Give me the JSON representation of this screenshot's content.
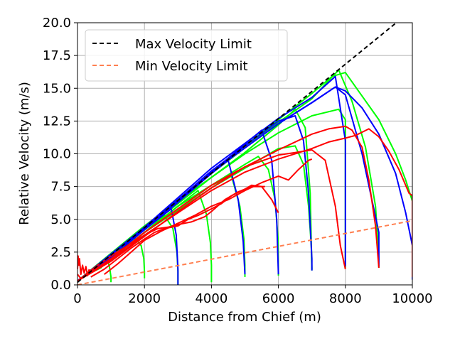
{
  "chart_data": {
    "type": "line",
    "xlabel": "Distance from Chief (m)",
    "ylabel": "Relative Velocity (m/s)",
    "xlim": [
      0,
      10000
    ],
    "ylim": [
      0,
      20
    ],
    "x_ticks": [
      "0",
      "2000",
      "4000",
      "6000",
      "8000",
      "10000"
    ],
    "y_ticks": [
      "0.0",
      "2.5",
      "5.0",
      "7.5",
      "10.0",
      "12.5",
      "15.0",
      "17.5",
      "20.0"
    ],
    "grid": true,
    "legend_position": "top-left",
    "limits": [
      {
        "name": "Max Velocity Limit",
        "style": "dashed",
        "color": "#000000",
        "x": [
          0,
          10000
        ],
        "y": [
          0.2,
          21.0
        ]
      },
      {
        "name": "Min Velocity Limit",
        "style": "dashed",
        "color": "#ff7f50",
        "x": [
          0,
          10000
        ],
        "y": [
          0.0,
          4.9
        ]
      }
    ],
    "series": [
      {
        "color": "#00ff00",
        "x": [
          0,
          300,
          700,
          900,
          960,
          1000,
          1000
        ],
        "y": [
          0.3,
          0.8,
          1.3,
          1.9,
          1.3,
          0.6,
          0.2
        ]
      },
      {
        "color": "#00ff00",
        "x": [
          0,
          600,
          1200,
          1700,
          1900,
          1980,
          2000,
          2000
        ],
        "y": [
          0.3,
          1.4,
          2.6,
          3.6,
          3.0,
          2.0,
          1.0,
          0.5
        ]
      },
      {
        "color": "#00ff00",
        "x": [
          0,
          1000,
          2000,
          2600,
          2850,
          2970,
          3000,
          3000
        ],
        "y": [
          0.3,
          2.0,
          4.0,
          5.3,
          4.3,
          2.5,
          1.0,
          0.0
        ]
      },
      {
        "color": "#00ff00",
        "x": [
          0,
          1000,
          2000,
          3000,
          3600,
          3850,
          3970,
          4000,
          4000
        ],
        "y": [
          0.3,
          2.0,
          4.0,
          6.0,
          7.2,
          5.4,
          3.2,
          1.5,
          0.2
        ]
      },
      {
        "color": "#00ff00",
        "x": [
          0,
          1000,
          2000,
          3000,
          4000,
          4600,
          4850,
          4970,
          5000,
          5000
        ],
        "y": [
          0.3,
          2.0,
          4.0,
          6.0,
          7.6,
          8.3,
          6.0,
          3.5,
          1.5,
          0.6
        ]
      },
      {
        "color": "#00ff00",
        "x": [
          0,
          1000,
          2000,
          3000,
          4000,
          5000,
          5400,
          5700,
          5900,
          5990,
          6000
        ],
        "y": [
          0.3,
          2.0,
          4.0,
          6.0,
          7.6,
          9.2,
          9.8,
          8.8,
          6.5,
          3.5,
          0.7
        ]
      },
      {
        "color": "#00ff00",
        "x": [
          0,
          1000,
          2000,
          3000,
          4000,
          5000,
          6000,
          6500,
          6750,
          6900,
          6980,
          7000
        ],
        "y": [
          0.3,
          2.0,
          4.0,
          5.7,
          7.4,
          8.9,
          10.4,
          10.6,
          9.2,
          6.0,
          3.0,
          1.1
        ]
      },
      {
        "color": "#00ff00",
        "x": [
          0,
          1000,
          2000,
          3000,
          4000,
          5000,
          6000,
          7000,
          7800,
          8000,
          8000
        ],
        "y": [
          0.3,
          2.4,
          4.5,
          6.4,
          8.2,
          10.0,
          11.6,
          12.9,
          13.4,
          12.6,
          1.3
        ]
      },
      {
        "color": "#00ff00",
        "x": [
          0,
          2000,
          4000,
          5000,
          6000,
          6500,
          6800,
          6950,
          7000
        ],
        "y": [
          0.3,
          4.2,
          8.2,
          10.1,
          12.2,
          13.4,
          12.0,
          7.0,
          1.2
        ]
      },
      {
        "color": "#00ff00",
        "x": [
          0,
          2000,
          4000,
          6000,
          7000,
          7800,
          8200,
          8600,
          8900,
          8990,
          9000
        ],
        "y": [
          0.3,
          4.3,
          8.5,
          12.4,
          14.2,
          16.4,
          14.0,
          10.5,
          6.0,
          2.5,
          1.3
        ]
      },
      {
        "color": "#00ff00",
        "x": [
          0,
          2000,
          4000,
          6000,
          7000,
          7600,
          8000,
          9000,
          9500,
          9800,
          10000,
          10000
        ],
        "y": [
          0.3,
          4.4,
          8.6,
          12.6,
          14.6,
          15.9,
          16.2,
          12.6,
          10.0,
          8.0,
          6.4,
          0.4
        ]
      },
      {
        "color": "#0000ff",
        "x": [
          0,
          1000,
          2000,
          2800,
          2950,
          3000,
          3000
        ],
        "y": [
          0.3,
          2.1,
          4.2,
          5.8,
          3.8,
          1.2,
          0.0
        ]
      },
      {
        "color": "#0000ff",
        "x": [
          0,
          1000,
          2000,
          3000,
          4000,
          4500,
          4800,
          4950,
          5000
        ],
        "y": [
          0.3,
          2.1,
          4.2,
          6.3,
          8.5,
          9.5,
          6.5,
          3.3,
          0.8
        ]
      },
      {
        "color": "#0000ff",
        "x": [
          0,
          2000,
          4000,
          5500,
          5800,
          5950,
          6000
        ],
        "y": [
          0.3,
          4.3,
          8.6,
          11.8,
          9.5,
          5.0,
          0.8
        ]
      },
      {
        "color": "#0000ff",
        "x": [
          0,
          2000,
          4000,
          6000,
          6500,
          6750,
          6900,
          7000,
          7000
        ],
        "y": [
          0.3,
          4.3,
          8.7,
          12.5,
          12.9,
          11.0,
          7.0,
          2.0,
          1.1
        ]
      },
      {
        "color": "#0000ff",
        "x": [
          0,
          2000,
          4000,
          6000,
          7000,
          7700,
          8000,
          8000
        ],
        "y": [
          0.3,
          4.4,
          8.9,
          12.7,
          14.3,
          15.9,
          11.0,
          1.4
        ]
      },
      {
        "color": "#0000ff",
        "x": [
          0,
          2000,
          4000,
          6000,
          7000,
          7700,
          8000,
          8500,
          9000,
          9000
        ],
        "y": [
          0.3,
          4.3,
          8.6,
          12.3,
          13.9,
          15.1,
          14.5,
          10.0,
          4.0,
          1.4
        ]
      },
      {
        "color": "#0000ff",
        "x": [
          0,
          2000,
          4000,
          6000,
          7000,
          7700,
          8000,
          8500,
          9000,
          9500,
          9800,
          10000,
          10000
        ],
        "y": [
          0.3,
          4.3,
          8.6,
          12.3,
          13.9,
          15.1,
          14.8,
          13.5,
          11.5,
          8.5,
          5.5,
          3.0,
          0.4
        ]
      },
      {
        "color": "#ff0000",
        "x": [
          0,
          20,
          40,
          60,
          100,
          150,
          200,
          250,
          300,
          350
        ],
        "y": [
          1.2,
          2.2,
          1.5,
          2.0,
          0.8,
          1.5,
          0.9,
          1.4,
          0.7,
          1.2
        ]
      },
      {
        "color": "#ff0000",
        "x": [
          0,
          100,
          300,
          600,
          1000,
          1500,
          2000,
          2400,
          2700,
          3000,
          3400,
          3800,
          4000,
          4400,
          4800,
          5200,
          5600
        ],
        "y": [
          0.8,
          0.5,
          0.9,
          1.5,
          2.2,
          3.0,
          3.8,
          4.3,
          4.4,
          4.6,
          4.8,
          5.2,
          5.6,
          6.5,
          7.1,
          7.5,
          7.5
        ]
      },
      {
        "color": "#ff0000",
        "x": [
          400,
          800,
          1200,
          1600,
          2000,
          2300,
          2600,
          3000,
          3300,
          3600,
          4000,
          4300,
          4600,
          5000,
          5200,
          5500,
          5800,
          6000
        ],
        "y": [
          0.6,
          1.2,
          2.0,
          2.8,
          3.5,
          4.0,
          4.3,
          4.5,
          5.0,
          5.3,
          5.8,
          6.2,
          6.8,
          7.3,
          7.6,
          7.5,
          6.5,
          5.5
        ]
      },
      {
        "color": "#ff0000",
        "x": [
          800,
          1200,
          1600,
          2000,
          2500,
          3000,
          3500,
          4000,
          4500,
          5000,
          5500,
          6000,
          6300,
          6600,
          6900,
          7000
        ],
        "y": [
          0.8,
          1.6,
          2.5,
          3.4,
          4.1,
          4.7,
          5.3,
          6.0,
          6.5,
          7.2,
          7.8,
          8.3,
          8.0,
          8.8,
          9.5,
          9.6
        ]
      },
      {
        "color": "#ff0000",
        "x": [
          0,
          1000,
          2000,
          3000,
          4000,
          5000,
          6000,
          6500,
          7000,
          7400,
          7700,
          7850,
          8000
        ],
        "y": [
          0.3,
          1.8,
          3.7,
          5.6,
          7.4,
          9.0,
          9.9,
          10.1,
          10.3,
          9.5,
          6.0,
          3.0,
          1.2
        ]
      },
      {
        "color": "#ff0000",
        "x": [
          0,
          1000,
          2000,
          3000,
          4000,
          5000,
          6000,
          7000,
          7500,
          8000,
          8200,
          8500,
          8700,
          8900,
          9000
        ],
        "y": [
          0.3,
          2.0,
          4.0,
          5.8,
          7.6,
          9.0,
          10.3,
          11.5,
          11.9,
          12.1,
          11.8,
          10.5,
          8.0,
          4.5,
          1.3
        ]
      },
      {
        "color": "#ff0000",
        "x": [
          0,
          1000,
          2000,
          3000,
          4000,
          5000,
          6000,
          7000,
          7500,
          8000,
          8300,
          8700,
          9000,
          9300,
          9600,
          9900,
          10000,
          10000
        ],
        "y": [
          0.3,
          1.9,
          3.8,
          5.5,
          7.2,
          8.6,
          9.6,
          10.4,
          10.9,
          11.2,
          11.4,
          11.9,
          11.3,
          10.2,
          8.8,
          7.0,
          6.8,
          0.6
        ]
      }
    ]
  }
}
